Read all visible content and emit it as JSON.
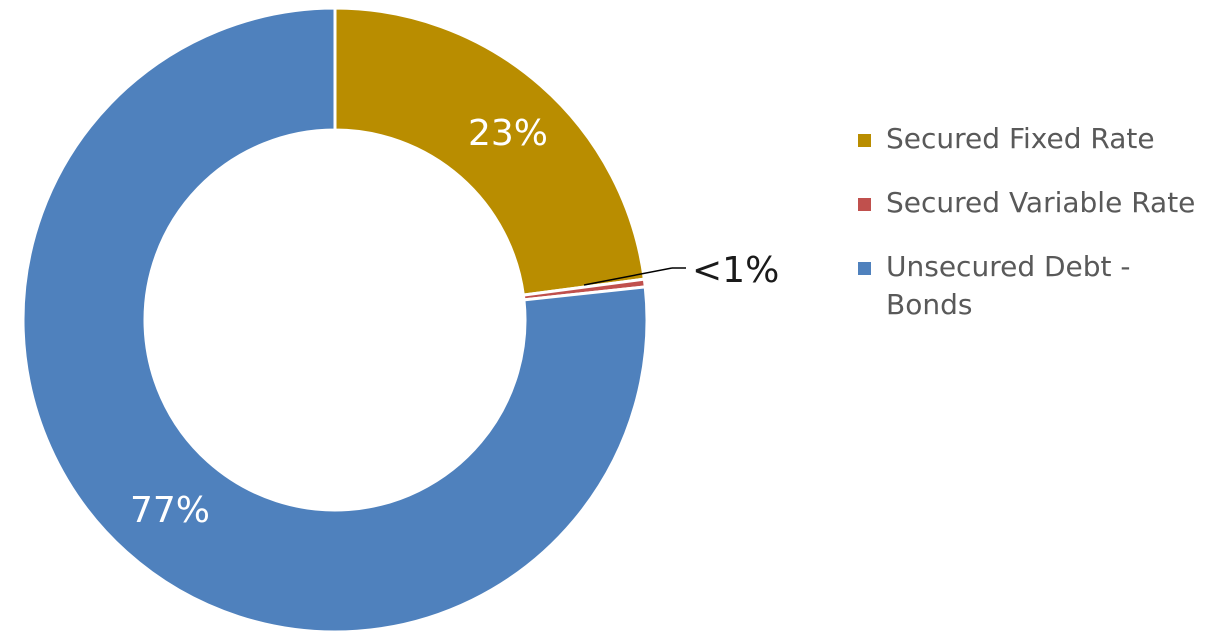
{
  "chart_data": {
    "type": "donut",
    "title": "",
    "legend_position": "right",
    "slices": [
      {
        "name": "Secured Fixed Rate",
        "value": 23,
        "label": "23%",
        "color": "#B98D00"
      },
      {
        "name": "Secured Variable Rate",
        "value": 0.4,
        "label": "<1%",
        "color": "#C0504D"
      },
      {
        "name": "Unsecured Debt - Bonds",
        "value": 77,
        "label": "77%",
        "color": "#4F81BD"
      }
    ]
  }
}
